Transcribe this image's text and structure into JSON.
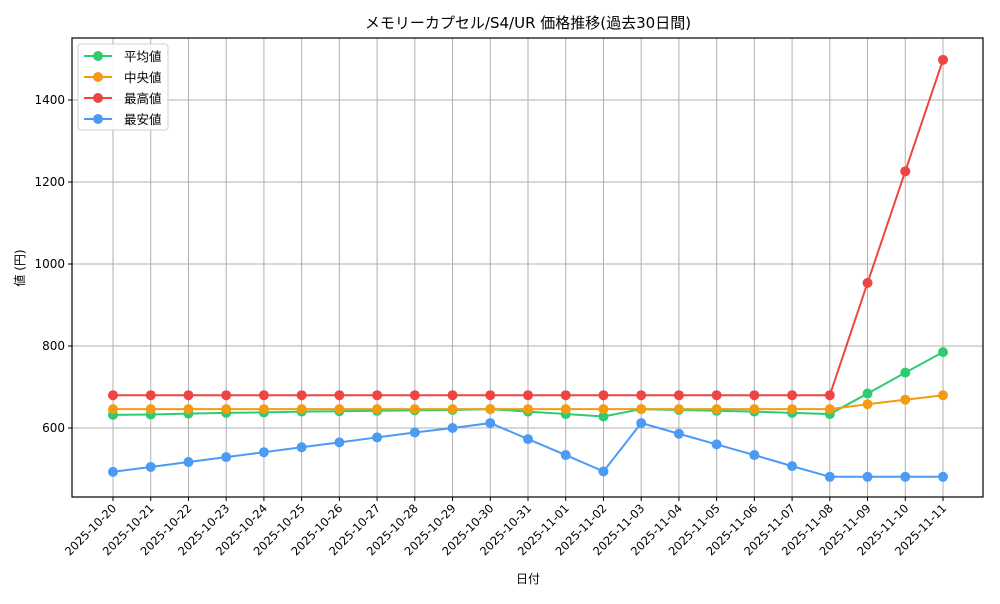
{
  "chart_data": {
    "type": "line",
    "title": "メモリーカプセル/S4/UR 価格推移(過去30日間)",
    "xlabel": "日付",
    "ylabel": "値 (円)",
    "ylim": [
      465,
      1550
    ],
    "yticks": [
      600,
      800,
      1000,
      1200,
      1400
    ],
    "grid": true,
    "legend_position": "upper left",
    "categories": [
      "2025-10-20",
      "2025-10-21",
      "2025-10-22",
      "2025-10-23",
      "2025-10-24",
      "2025-10-25",
      "2025-10-26",
      "2025-10-27",
      "2025-10-28",
      "2025-10-29",
      "2025-10-30",
      "2025-10-31",
      "2025-11-01",
      "2025-11-02",
      "2025-11-03",
      "2025-11-04",
      "2025-11-05",
      "2025-11-06",
      "2025-11-07",
      "2025-11-08",
      "2025-11-09",
      "2025-11-10",
      "2025-11-11"
    ],
    "series": [
      {
        "name": "平均値",
        "color": "#2ecc71",
        "values": [
          632,
          633,
          635,
          637,
          638,
          640,
          641,
          642,
          643,
          644,
          646,
          640,
          634,
          628,
          646,
          644,
          642,
          640,
          637,
          634,
          684,
          735,
          785
        ]
      },
      {
        "name": "中央値",
        "color": "#f39c12",
        "values": [
          646,
          646,
          646,
          646,
          646,
          646,
          646,
          646,
          646,
          646,
          646,
          646,
          646,
          646,
          646,
          646,
          646,
          646,
          646,
          646,
          658,
          669,
          680
        ]
      },
      {
        "name": "最高値",
        "color": "#ef4444",
        "values": [
          680,
          680,
          680,
          680,
          680,
          680,
          680,
          680,
          680,
          680,
          680,
          680,
          680,
          680,
          680,
          680,
          680,
          680,
          680,
          680,
          954,
          1226,
          1498
        ]
      },
      {
        "name": "最安値",
        "color": "#4b9bf5",
        "values": [
          493,
          505,
          517,
          529,
          541,
          553,
          565,
          577,
          589,
          600,
          612,
          573,
          534,
          494,
          612,
          586,
          560,
          534,
          507,
          481,
          481,
          481,
          481
        ]
      }
    ]
  }
}
